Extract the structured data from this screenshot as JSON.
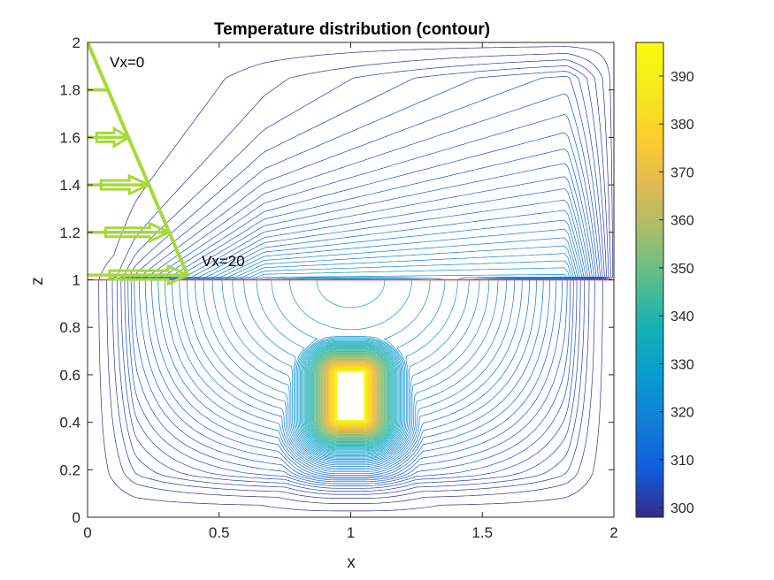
{
  "chart_data": {
    "type": "contour",
    "title": "Temperature distribution (contour)",
    "xlabel": "x",
    "ylabel": "z",
    "xlim": [
      0,
      2
    ],
    "ylim": [
      0,
      2
    ],
    "xticks": [
      0,
      0.5,
      1,
      1.5,
      2
    ],
    "xtick_labels": [
      "0",
      "0.5",
      "1",
      "1.5",
      "2"
    ],
    "yticks": [
      0,
      0.2,
      0.4,
      0.6,
      0.8,
      1,
      1.2,
      1.4,
      1.6,
      1.8,
      2
    ],
    "ytick_labels": [
      "0",
      "0.2",
      "0.4",
      "0.6",
      "0.8",
      "1",
      "1.2",
      "1.4",
      "1.6",
      "1.8",
      "2"
    ],
    "grid": false,
    "colorbar": {
      "range": [
        298,
        397
      ],
      "ticks": [
        300,
        310,
        320,
        330,
        340,
        350,
        360,
        370,
        380,
        390
      ],
      "tick_labels": [
        "300",
        "310",
        "320",
        "330",
        "340",
        "350",
        "360",
        "370",
        "380",
        "390"
      ],
      "colormap": "parula"
    },
    "heat_source": {
      "x": [
        0.95,
        1.05
      ],
      "z": [
        0.41,
        0.61
      ],
      "temperature": 397
    },
    "ambient_temperature": 298,
    "interface": {
      "z": 1,
      "color": "#e8474c"
    },
    "velocity_profile": {
      "color": "#a6d93a",
      "z_top": 2,
      "z_bottom": 1.02,
      "arrow_levels": [
        1.6,
        1.4,
        1.2,
        1.02,
        1.8
      ],
      "label_top": "Vx=0",
      "label_bottom": "Vx=20"
    }
  }
}
